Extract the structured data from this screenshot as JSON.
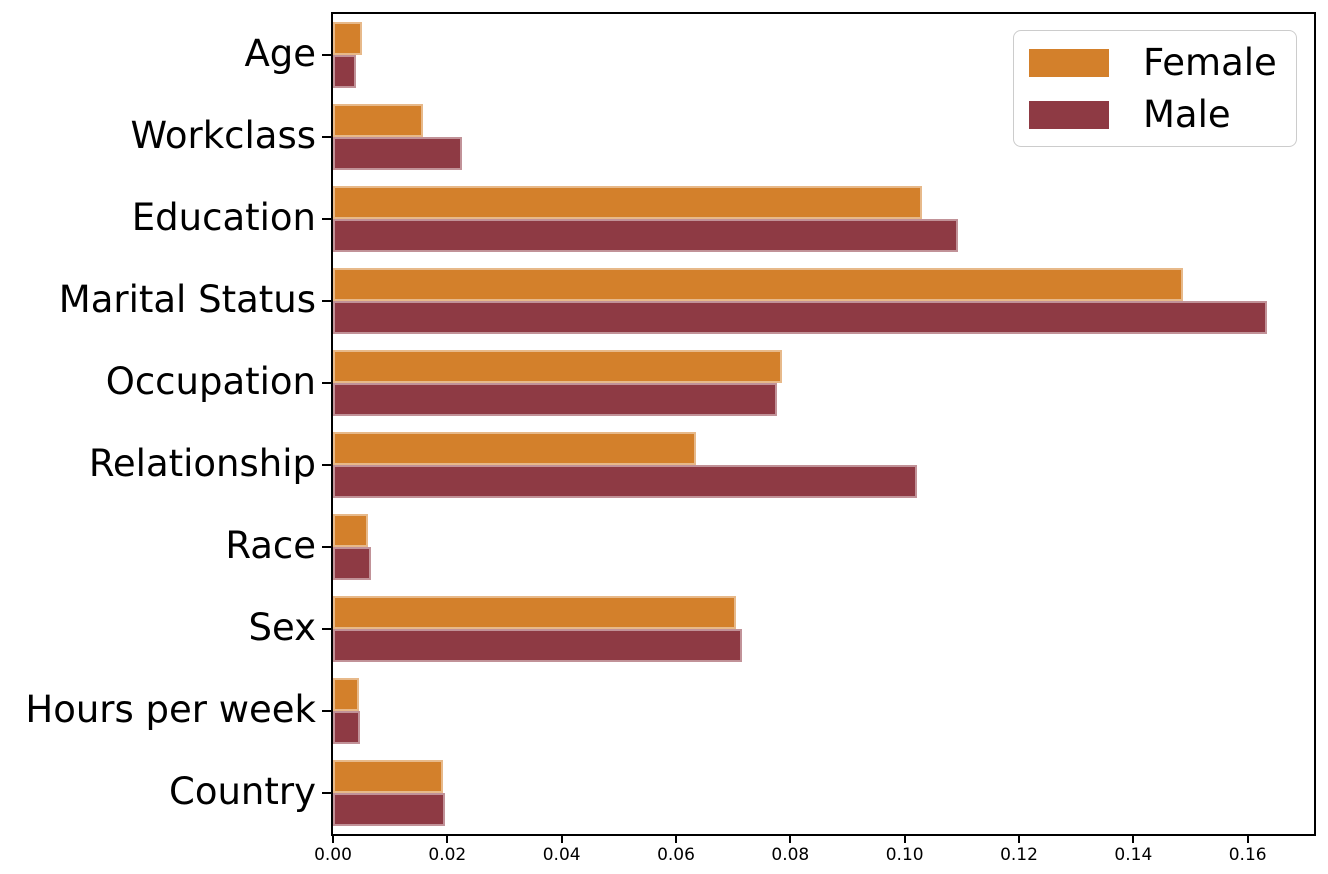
{
  "figure": {
    "background": "#ffffff",
    "spine_color": "#000000"
  },
  "chart_data": {
    "type": "bar",
    "orientation": "horizontal",
    "categories": [
      "Age",
      "Workclass",
      "Education",
      "Marital Status",
      "Occupation",
      "Relationship",
      "Race",
      "Sex",
      "Hours per week",
      "Country"
    ],
    "series": [
      {
        "name": "Female",
        "color": "#d3802b",
        "values": [
          0.005,
          0.0158,
          0.1031,
          0.1486,
          0.0786,
          0.0635,
          0.0062,
          0.0705,
          0.0046,
          0.0193
        ]
      },
      {
        "name": "Male",
        "color": "#8e3a44",
        "values": [
          0.004,
          0.0226,
          0.1093,
          0.1634,
          0.0776,
          0.1022,
          0.0067,
          0.0715,
          0.0047,
          0.0196
        ]
      }
    ],
    "xlim": [
      0,
      0.1716
    ],
    "x_tick_values": [
      0.0,
      0.02,
      0.04,
      0.06,
      0.08,
      0.1,
      0.12,
      0.14,
      0.16
    ],
    "x_tick_labels": [
      "0.00",
      "0.02",
      "0.04",
      "0.06",
      "0.08",
      "0.10",
      "0.12",
      "0.14",
      "0.16"
    ],
    "grid": false,
    "legend_position": "upper right"
  }
}
